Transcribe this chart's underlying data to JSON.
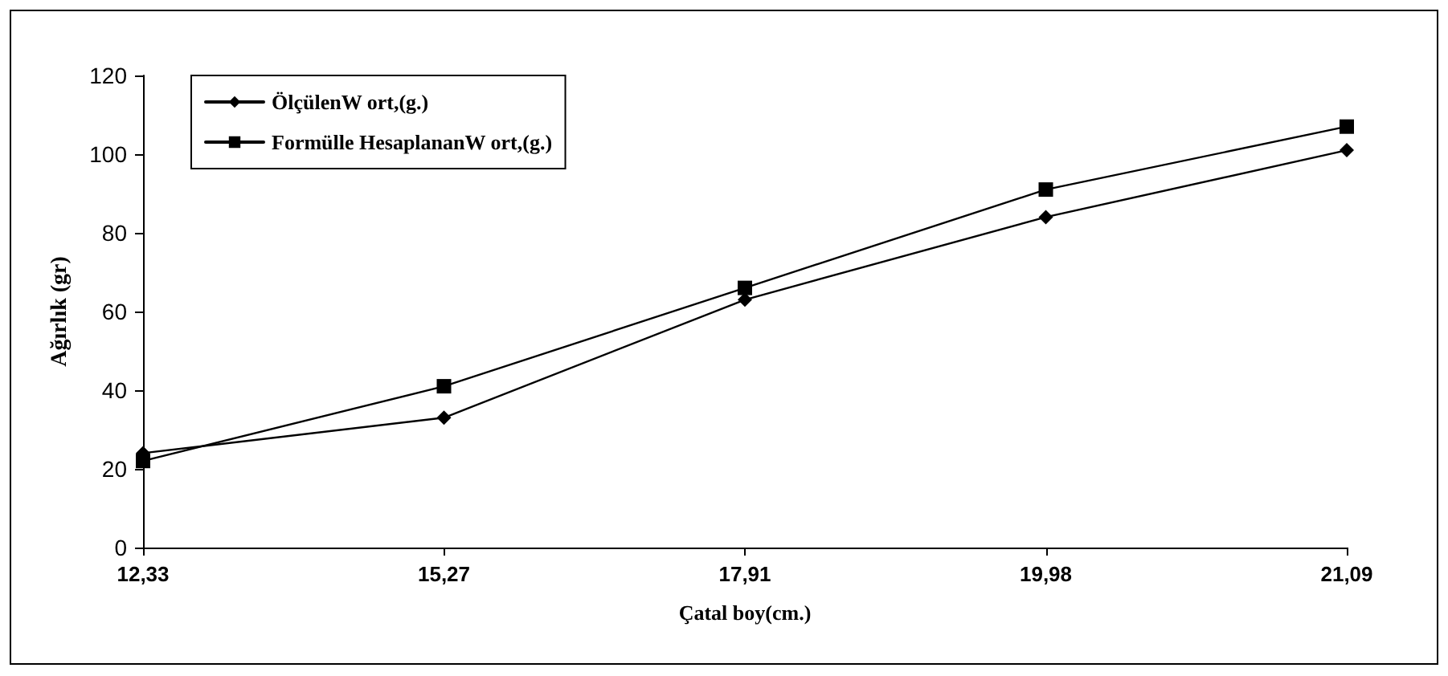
{
  "chart_data": {
    "type": "line",
    "xlabel": "Çatal boy(cm.)",
    "ylabel": "Ağırlık (gr)",
    "categories": [
      "12,33",
      "15,27",
      "17,91",
      "19,98",
      "21,09"
    ],
    "series": [
      {
        "name": "ÖlçülenW ort,(g.)",
        "color": "#000000",
        "marker": "diamond",
        "values": [
          24,
          33,
          63,
          84,
          101
        ]
      },
      {
        "name": "Formülle HesaplananW ort,(g.)",
        "color": "#000000",
        "marker": "square",
        "values": [
          22,
          41,
          66,
          91,
          107
        ]
      }
    ],
    "ylim": [
      0,
      120
    ],
    "yticks": [
      0,
      20,
      40,
      60,
      80,
      100,
      120
    ],
    "grid": false,
    "legend": "top left",
    "line_style": "solid"
  }
}
